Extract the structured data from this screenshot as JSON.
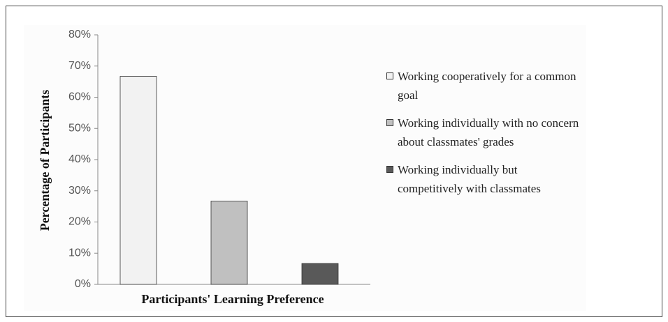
{
  "chart_data": {
    "type": "bar",
    "x_label": "Participants' Learning Preference",
    "y_label": "Percentage of Participants",
    "series": [
      {
        "name": "Working cooperatively for a common goal",
        "color": "#f2f2f2",
        "values": [
          66.7
        ]
      },
      {
        "name": "Working individually with no concern about classmates' grades",
        "color": "#c0c0c0",
        "values": [
          26.7
        ]
      },
      {
        "name": "Working individually but competitively with classmates",
        "color": "#595959",
        "values": [
          6.7
        ]
      }
    ],
    "ylim": [
      0,
      80
    ],
    "yticks": [
      {
        "value": 0,
        "label": "0%"
      },
      {
        "value": 10,
        "label": "10%"
      },
      {
        "value": 20,
        "label": "20%"
      },
      {
        "value": 30,
        "label": "30%"
      },
      {
        "value": 40,
        "label": "40%"
      },
      {
        "value": 50,
        "label": "50%"
      },
      {
        "value": 60,
        "label": "60%"
      },
      {
        "value": 70,
        "label": "70%"
      },
      {
        "value": 80,
        "label": "80%"
      }
    ],
    "legend": "right"
  }
}
